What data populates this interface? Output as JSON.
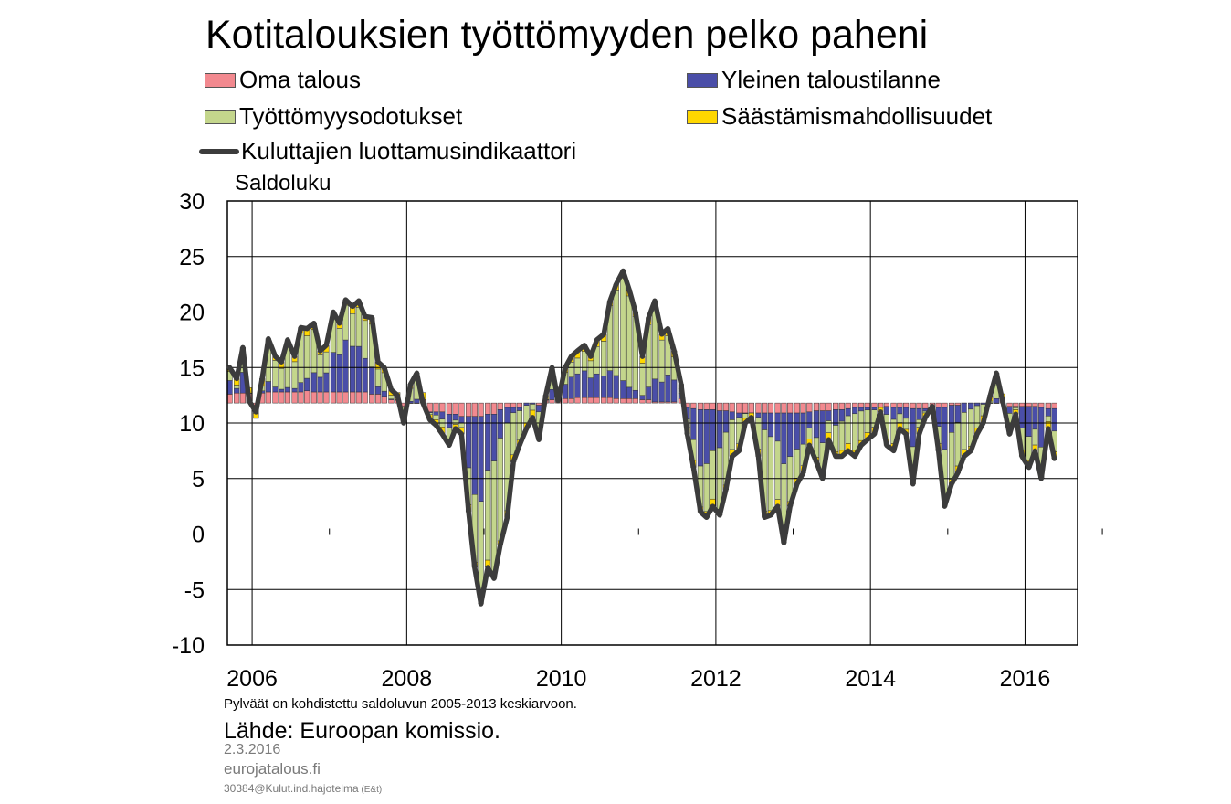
{
  "title": "Kotitalouksien työttömyyden pelko paheni",
  "legend": {
    "oma_talous": "Oma talous",
    "yleinen": "Yleinen taloustilanne",
    "tyottomyys": "Työttömyysodotukset",
    "saastamis": "Säästämismahdollisuudet",
    "luottamus": "Kuluttajien luottamusindikaattori"
  },
  "colors": {
    "oma_talous": "#f2898f",
    "yleinen": "#4a4ea8",
    "tyottomyys": "#c4d68c",
    "saastamis": "#ffd700",
    "luottamus": "#3c3c3c"
  },
  "note": "Pylväät on kohdistettu saldoluvun 2005-2013 keskiarvoon.",
  "source": "Lähde: Euroopan komissio.",
  "date": "2.3.2016",
  "site": "eurojatalous.fi",
  "code": "30384@Kulut.ind.hajotelma",
  "code_suffix": " (E&t)",
  "chart_data": {
    "type": "bar",
    "ylabel": "Saldoluku",
    "ylim": [
      -10,
      30
    ],
    "yticks": [
      -10,
      -5,
      0,
      5,
      10,
      15,
      20,
      25,
      30
    ],
    "xlim": [
      2005.8,
      2016.8
    ],
    "xticks": [
      2006,
      2008,
      2010,
      2012,
      2014,
      2016
    ],
    "baseline": 11.8,
    "grid": true,
    "legend_position": "top",
    "series": [
      {
        "name": "Kuluttajien luottamusindikaattori",
        "type": "line",
        "points": [
          [
            2005.83,
            15.0
          ],
          [
            2005.92,
            14.0
          ],
          [
            2006.0,
            16.8
          ],
          [
            2006.08,
            12.0
          ],
          [
            2006.17,
            11.0
          ],
          [
            2006.25,
            14.0
          ],
          [
            2006.33,
            17.6
          ],
          [
            2006.42,
            16.0
          ],
          [
            2006.5,
            15.5
          ],
          [
            2006.58,
            17.5
          ],
          [
            2006.67,
            16.0
          ],
          [
            2006.75,
            18.6
          ],
          [
            2006.83,
            18.5
          ],
          [
            2006.92,
            19.0
          ],
          [
            2007.0,
            16.5
          ],
          [
            2007.08,
            17.0
          ],
          [
            2007.17,
            20.0
          ],
          [
            2007.25,
            19.0
          ],
          [
            2007.33,
            21.1
          ],
          [
            2007.42,
            20.5
          ],
          [
            2007.5,
            21.0
          ],
          [
            2007.58,
            19.6
          ],
          [
            2007.67,
            19.5
          ],
          [
            2007.75,
            15.5
          ],
          [
            2007.83,
            15.0
          ],
          [
            2007.92,
            13.0
          ],
          [
            2008.0,
            12.5
          ],
          [
            2008.08,
            10.0
          ],
          [
            2008.17,
            13.5
          ],
          [
            2008.25,
            14.5
          ],
          [
            2008.33,
            11.8
          ],
          [
            2008.42,
            10.3
          ],
          [
            2008.5,
            9.8
          ],
          [
            2008.58,
            9.0
          ],
          [
            2008.67,
            8.0
          ],
          [
            2008.75,
            9.5
          ],
          [
            2008.83,
            9.0
          ],
          [
            2008.92,
            2.0
          ],
          [
            2009.0,
            -3.0
          ],
          [
            2009.08,
            -6.3
          ],
          [
            2009.17,
            -3.0
          ],
          [
            2009.25,
            -4.0
          ],
          [
            2009.33,
            -1.0
          ],
          [
            2009.42,
            1.5
          ],
          [
            2009.5,
            6.5
          ],
          [
            2009.58,
            8.0
          ],
          [
            2009.67,
            9.5
          ],
          [
            2009.75,
            10.5
          ],
          [
            2009.83,
            8.5
          ],
          [
            2009.92,
            12.5
          ],
          [
            2010.0,
            15.0
          ],
          [
            2010.08,
            12.0
          ],
          [
            2010.17,
            15.0
          ],
          [
            2010.25,
            16.0
          ],
          [
            2010.33,
            16.5
          ],
          [
            2010.42,
            17.0
          ],
          [
            2010.5,
            16.0
          ],
          [
            2010.58,
            17.5
          ],
          [
            2010.67,
            18.0
          ],
          [
            2010.75,
            21.0
          ],
          [
            2010.83,
            22.5
          ],
          [
            2010.92,
            23.7
          ],
          [
            2011.0,
            22.0
          ],
          [
            2011.08,
            20.0
          ],
          [
            2011.17,
            16.0
          ],
          [
            2011.25,
            19.5
          ],
          [
            2011.33,
            21.0
          ],
          [
            2011.42,
            18.0
          ],
          [
            2011.5,
            18.5
          ],
          [
            2011.58,
            16.5
          ],
          [
            2011.67,
            13.5
          ],
          [
            2011.75,
            9.0
          ],
          [
            2011.83,
            6.0
          ],
          [
            2011.92,
            2.0
          ],
          [
            2012.0,
            1.5
          ],
          [
            2012.08,
            2.5
          ],
          [
            2012.17,
            1.7
          ],
          [
            2012.25,
            4.0
          ],
          [
            2012.33,
            7.0
          ],
          [
            2012.42,
            7.5
          ],
          [
            2012.5,
            10.0
          ],
          [
            2012.58,
            10.5
          ],
          [
            2012.67,
            7.0
          ],
          [
            2012.75,
            1.5
          ],
          [
            2012.83,
            1.7
          ],
          [
            2012.92,
            2.5
          ],
          [
            2013.0,
            -0.8
          ],
          [
            2013.08,
            2.5
          ],
          [
            2013.17,
            4.5
          ],
          [
            2013.25,
            5.5
          ],
          [
            2013.33,
            8.0
          ],
          [
            2013.42,
            6.5
          ],
          [
            2013.5,
            5.0
          ],
          [
            2013.58,
            8.5
          ],
          [
            2013.67,
            7.0
          ],
          [
            2013.75,
            7.0
          ],
          [
            2013.83,
            7.5
          ],
          [
            2013.92,
            7.0
          ],
          [
            2014.0,
            8.0
          ],
          [
            2014.08,
            8.5
          ],
          [
            2014.17,
            9.0
          ],
          [
            2014.25,
            11.0
          ],
          [
            2014.33,
            8.0
          ],
          [
            2014.42,
            7.5
          ],
          [
            2014.5,
            9.5
          ],
          [
            2014.58,
            9.0
          ],
          [
            2014.67,
            4.5
          ],
          [
            2014.75,
            9.0
          ],
          [
            2014.83,
            10.5
          ],
          [
            2014.92,
            11.5
          ],
          [
            2015.0,
            7.5
          ],
          [
            2015.08,
            2.5
          ],
          [
            2015.17,
            4.5
          ],
          [
            2015.25,
            5.5
          ],
          [
            2015.33,
            7.0
          ],
          [
            2015.42,
            7.5
          ],
          [
            2015.5,
            9.0
          ],
          [
            2015.58,
            10.0
          ],
          [
            2015.67,
            12.5
          ],
          [
            2015.75,
            14.5
          ],
          [
            2015.83,
            12.0
          ],
          [
            2015.92,
            9.0
          ],
          [
            2016.0,
            10.8
          ],
          [
            2016.08,
            7.0
          ],
          [
            2016.17,
            6.0
          ],
          [
            2016.25,
            7.5
          ],
          [
            2016.33,
            5.0
          ],
          [
            2016.42,
            9.5
          ],
          [
            2016.5,
            6.8
          ]
        ]
      },
      {
        "name": "Oma talous",
        "type": "bar",
        "x": [
          2005.83,
          2006.0,
          2006.17,
          2006.33,
          2006.5,
          2006.67,
          2006.83,
          2007.0,
          2007.17,
          2007.33,
          2007.5,
          2007.67,
          2007.83,
          2008.0,
          2008.17,
          2008.33,
          2008.5,
          2008.67,
          2008.83,
          2009.0,
          2009.17,
          2009.33,
          2009.5,
          2009.67,
          2009.83,
          2010.0,
          2010.17,
          2010.33,
          2010.5,
          2010.67,
          2010.83,
          2011.0,
          2011.17,
          2011.33,
          2011.5,
          2011.67,
          2011.83,
          2012.0,
          2012.17,
          2012.33,
          2012.5,
          2012.67,
          2012.83,
          2013.0,
          2013.17,
          2013.33,
          2013.5,
          2013.67,
          2013.83,
          2014.0,
          2014.17,
          2014.33,
          2014.5,
          2014.67,
          2014.83,
          2015.0,
          2015.17,
          2015.33,
          2015.5,
          2015.67,
          2015.83,
          2016.0,
          2016.17,
          2016.33,
          2016.5
        ],
        "values": [
          0.8,
          0.9,
          0.9,
          1.0,
          1.0,
          1.0,
          1.1,
          1.0,
          1.0,
          1.0,
          1.0,
          0.8,
          0.6,
          0.3,
          0.0,
          -0.3,
          -0.8,
          -1.0,
          -1.2,
          -1.2,
          -1.0,
          -0.6,
          -0.4,
          0.0,
          0.2,
          0.3,
          0.4,
          0.5,
          0.5,
          0.5,
          0.4,
          0.4,
          0.3,
          0.1,
          -0.1,
          -0.4,
          -0.5,
          -0.6,
          -0.7,
          -0.8,
          -0.9,
          -0.9,
          -0.9,
          -0.9,
          -0.9,
          -0.8,
          -0.7,
          -0.6,
          -0.5,
          -0.4,
          -0.4,
          -0.3,
          -0.4,
          -0.5,
          -0.5,
          -0.4,
          -0.2,
          0.0,
          0.0,
          0.0,
          -0.2,
          -0.3,
          -0.3,
          -0.4,
          -0.5
        ]
      }
    ]
  }
}
